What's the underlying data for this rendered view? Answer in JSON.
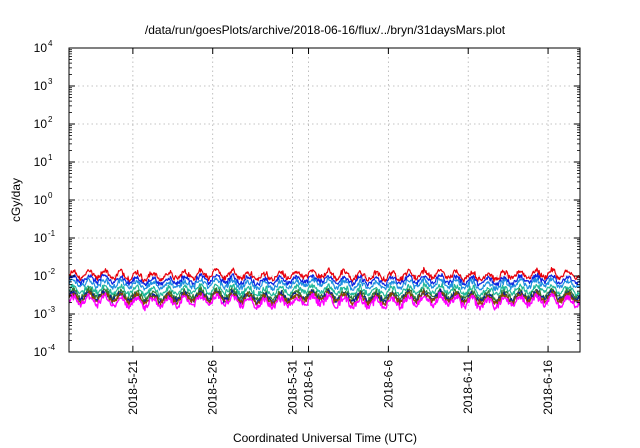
{
  "chart_data": {
    "type": "line",
    "title": "/data/run/goesPlots/archive/2018-06-16/flux/../bryn/31daysMars.plot",
    "xlabel": "Coordinated Universal Time (UTC)",
    "ylabel": "cGy/day",
    "yscale": "log",
    "ylim": [
      0.0001,
      10000
    ],
    "y_ticks": [
      {
        "value": 0.0001,
        "base": "10",
        "exp": "-4"
      },
      {
        "value": 0.001,
        "base": "10",
        "exp": "-3"
      },
      {
        "value": 0.01,
        "base": "10",
        "exp": "-2"
      },
      {
        "value": 0.1,
        "base": "10",
        "exp": "-1"
      },
      {
        "value": 1,
        "base": "10",
        "exp": "0"
      },
      {
        "value": 10,
        "base": "10",
        "exp": "1"
      },
      {
        "value": 100,
        "base": "10",
        "exp": "2"
      },
      {
        "value": 1000,
        "base": "10",
        "exp": "3"
      },
      {
        "value": 10000,
        "base": "10",
        "exp": "4"
      }
    ],
    "xlim": [
      "2018-05-17",
      "2018-06-18"
    ],
    "x_ticks": [
      {
        "value": "2018-05-21",
        "label": "2018-5-21"
      },
      {
        "value": "2018-05-26",
        "label": "2018-5-26"
      },
      {
        "value": "2018-05-31",
        "label": "2018-5-31"
      },
      {
        "value": "2018-06-01",
        "label": "2018-6-1"
      },
      {
        "value": "2018-06-06",
        "label": "2018-6-6"
      },
      {
        "value": "2018-06-11",
        "label": "2018-6-11"
      },
      {
        "value": "2018-06-16",
        "label": "2018-6-16"
      }
    ],
    "grid": true,
    "legend": "none",
    "series": [
      {
        "color": "#e8000b",
        "level": 0.0105,
        "amplitude": 0.35
      },
      {
        "color": "#0a24e0",
        "level": 0.0078,
        "amplitude": 0.32
      },
      {
        "color": "#1f8fe0",
        "level": 0.006,
        "amplitude": 0.33
      },
      {
        "color": "#21b89a",
        "level": 0.0042,
        "amplitude": 0.34
      },
      {
        "color": "#2e7d32",
        "level": 0.0032,
        "amplitude": 0.36
      },
      {
        "color": "#0a1f8f",
        "level": 0.0028,
        "amplitude": 0.36
      },
      {
        "color": "#8a4a00",
        "level": 0.0026,
        "amplitude": 0.37
      },
      {
        "color": "#ff00ff",
        "level": 0.0021,
        "amplitude": 0.42
      }
    ]
  }
}
